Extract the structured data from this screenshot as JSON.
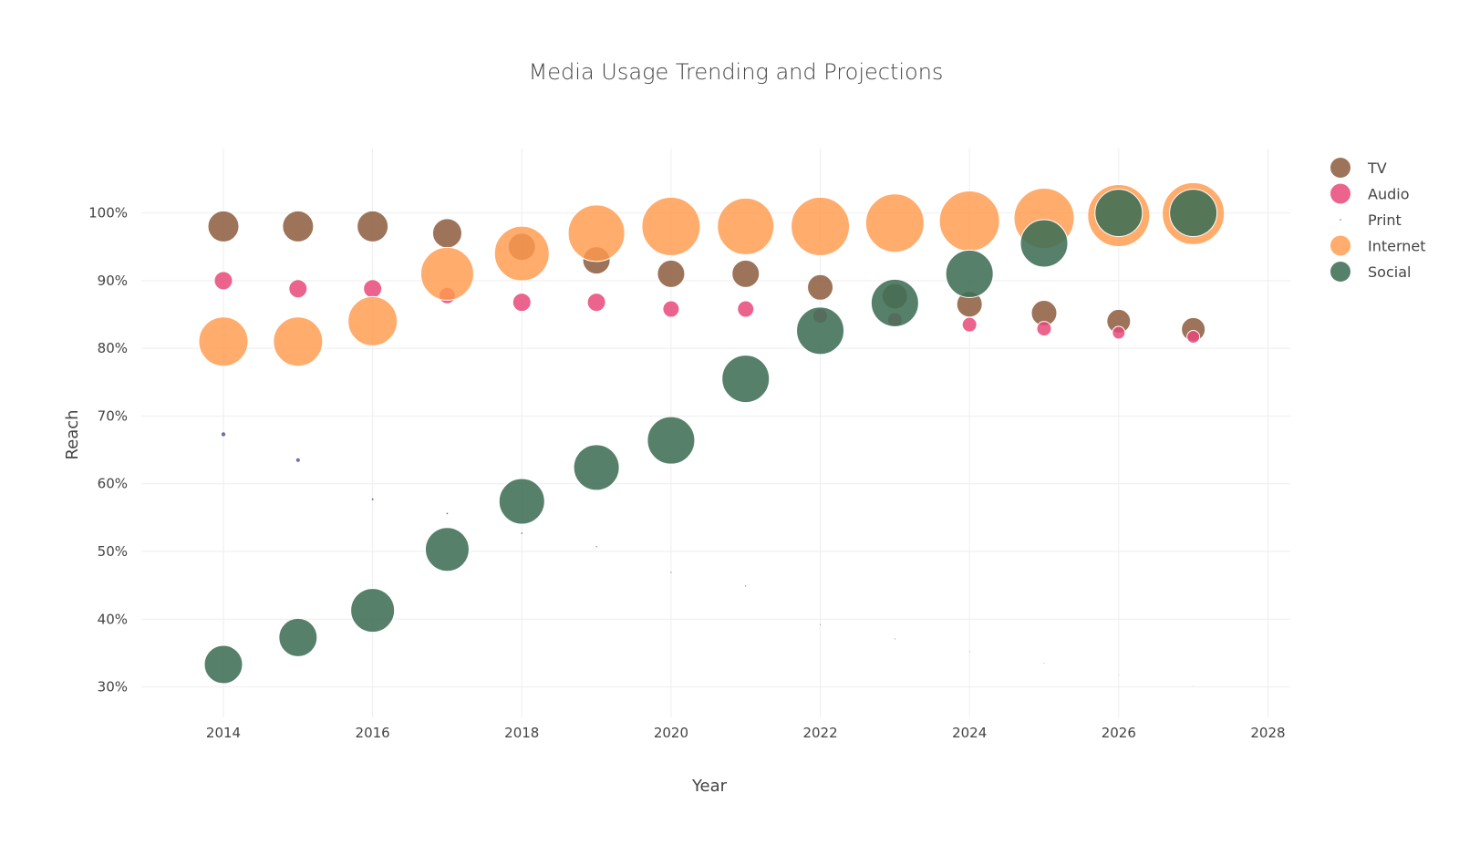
{
  "chart_data": {
    "type": "scatter",
    "title": "Media Usage Trending and Projections",
    "xlabel": "Year",
    "ylabel": "Reach",
    "xlim": [
      2012.9,
      2028.3
    ],
    "ylim": [
      25.5,
      109.5
    ],
    "x_ticks": [
      2014,
      2016,
      2018,
      2020,
      2022,
      2024,
      2026,
      2028
    ],
    "y_ticks": [
      30,
      40,
      50,
      60,
      70,
      80,
      90,
      100
    ],
    "y_tick_suffix": "%",
    "grid": true,
    "legend_position": "top-right",
    "series": [
      {
        "name": "TV",
        "color": "#8c5a3c",
        "opacity": 0.85,
        "points": [
          {
            "x": 2014,
            "y": 98,
            "r": 17
          },
          {
            "x": 2015,
            "y": 98,
            "r": 17
          },
          {
            "x": 2016,
            "y": 98,
            "r": 17
          },
          {
            "x": 2017,
            "y": 97,
            "r": 16
          },
          {
            "x": 2018,
            "y": 95,
            "r": 15
          },
          {
            "x": 2019,
            "y": 93,
            "r": 15
          },
          {
            "x": 2020,
            "y": 91,
            "r": 15
          },
          {
            "x": 2021,
            "y": 91,
            "r": 15
          },
          {
            "x": 2022,
            "y": 89,
            "r": 14
          },
          {
            "x": 2023,
            "y": 87.7,
            "r": 14
          },
          {
            "x": 2024,
            "y": 86.5,
            "r": 14
          },
          {
            "x": 2025,
            "y": 85.2,
            "r": 14
          },
          {
            "x": 2026,
            "y": 84,
            "r": 13
          },
          {
            "x": 2027,
            "y": 82.8,
            "r": 13
          }
        ]
      },
      {
        "name": "Audio",
        "color": "#e8497a",
        "opacity": 0.85,
        "points": [
          {
            "x": 2014,
            "y": 90,
            "r": 10
          },
          {
            "x": 2015,
            "y": 88.8,
            "r": 10
          },
          {
            "x": 2016,
            "y": 88.8,
            "r": 10
          },
          {
            "x": 2017,
            "y": 87.8,
            "r": 9
          },
          {
            "x": 2018,
            "y": 86.8,
            "r": 10
          },
          {
            "x": 2019,
            "y": 86.8,
            "r": 10
          },
          {
            "x": 2020,
            "y": 85.8,
            "r": 9
          },
          {
            "x": 2021,
            "y": 85.8,
            "r": 9
          },
          {
            "x": 2022,
            "y": 84.8,
            "r": 8
          },
          {
            "x": 2023,
            "y": 84.2,
            "r": 8
          },
          {
            "x": 2024,
            "y": 83.5,
            "r": 8
          },
          {
            "x": 2025,
            "y": 82.9,
            "r": 8
          },
          {
            "x": 2026,
            "y": 82.3,
            "r": 7
          },
          {
            "x": 2027,
            "y": 81.7,
            "r": 7
          }
        ]
      },
      {
        "name": "Print",
        "color": "#5a5fa8",
        "opacity": 0.9,
        "points": [
          {
            "x": 2014,
            "y": 67.3,
            "r": 2.2
          },
          {
            "x": 2015,
            "y": 63.5,
            "r": 2
          },
          {
            "x": 2016,
            "y": 57.7,
            "r": 1
          },
          {
            "x": 2017,
            "y": 55.6,
            "r": 0.9
          },
          {
            "x": 2018,
            "y": 52.7,
            "r": 0.8
          },
          {
            "x": 2019,
            "y": 50.7,
            "r": 0.7
          },
          {
            "x": 2020,
            "y": 46.9,
            "r": 0.6
          },
          {
            "x": 2021,
            "y": 44.9,
            "r": 0.6
          },
          {
            "x": 2022,
            "y": 39.2,
            "r": 0.5
          },
          {
            "x": 2023,
            "y": 37.1,
            "r": 0.5
          },
          {
            "x": 2024,
            "y": 35.2,
            "r": 0.4
          },
          {
            "x": 2025,
            "y": 33.5,
            "r": 0.4
          },
          {
            "x": 2026,
            "y": 31.8,
            "r": 0.3
          },
          {
            "x": 2027,
            "y": 30.1,
            "r": 0.3
          }
        ]
      },
      {
        "name": "Internet",
        "color": "#ff9a4d",
        "opacity": 0.82,
        "points": [
          {
            "x": 2014,
            "y": 81,
            "r": 27
          },
          {
            "x": 2015,
            "y": 81,
            "r": 27
          },
          {
            "x": 2016,
            "y": 84,
            "r": 27
          },
          {
            "x": 2017,
            "y": 91,
            "r": 29
          },
          {
            "x": 2018,
            "y": 94,
            "r": 30
          },
          {
            "x": 2019,
            "y": 97,
            "r": 31
          },
          {
            "x": 2020,
            "y": 98,
            "r": 32
          },
          {
            "x": 2021,
            "y": 98,
            "r": 31
          },
          {
            "x": 2022,
            "y": 98,
            "r": 32
          },
          {
            "x": 2023,
            "y": 98.5,
            "r": 32
          },
          {
            "x": 2024,
            "y": 98.8,
            "r": 33
          },
          {
            "x": 2025,
            "y": 99.2,
            "r": 33
          },
          {
            "x": 2026,
            "y": 99.6,
            "r": 34
          },
          {
            "x": 2027,
            "y": 99.9,
            "r": 34
          }
        ]
      },
      {
        "name": "Social",
        "color": "#3f6e55",
        "opacity": 0.88,
        "points": [
          {
            "x": 2014,
            "y": 33.3,
            "r": 21
          },
          {
            "x": 2015,
            "y": 37.3,
            "r": 21
          },
          {
            "x": 2016,
            "y": 41.3,
            "r": 24
          },
          {
            "x": 2017,
            "y": 50.3,
            "r": 24
          },
          {
            "x": 2018,
            "y": 57.4,
            "r": 25
          },
          {
            "x": 2019,
            "y": 62.4,
            "r": 25
          },
          {
            "x": 2020,
            "y": 66.4,
            "r": 26
          },
          {
            "x": 2021,
            "y": 75.5,
            "r": 26
          },
          {
            "x": 2022,
            "y": 82.6,
            "r": 26
          },
          {
            "x": 2023,
            "y": 86.7,
            "r": 26
          },
          {
            "x": 2024,
            "y": 91,
            "r": 26
          },
          {
            "x": 2025,
            "y": 95.5,
            "r": 26
          },
          {
            "x": 2026,
            "y": 100,
            "r": 26
          },
          {
            "x": 2027,
            "y": 100,
            "r": 26
          }
        ]
      }
    ]
  }
}
